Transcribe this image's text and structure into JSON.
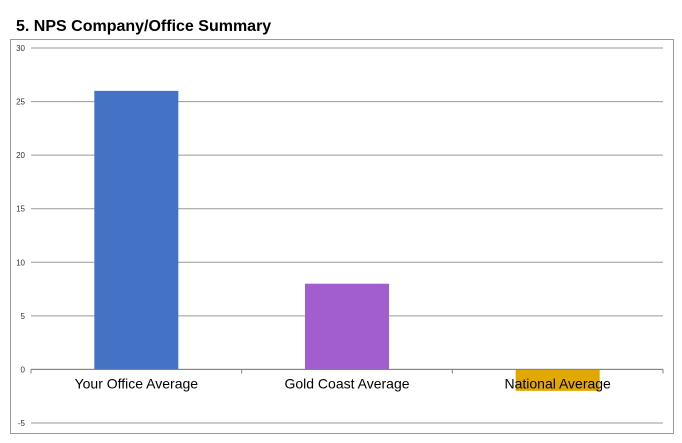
{
  "chart_data": {
    "type": "bar",
    "title": "5. NPS Company/Office Summary",
    "categories": [
      "Your Office Average",
      "Gold Coast Average",
      "National Average"
    ],
    "values": [
      26,
      8,
      -2
    ],
    "colors": [
      "#4472c4",
      "#a25dce",
      "#e0a800"
    ],
    "ylim": [
      -5,
      30
    ],
    "yticks": [
      30,
      25,
      20,
      15,
      10,
      5,
      0,
      -5
    ],
    "grid": true,
    "xlabel": "",
    "ylabel": ""
  }
}
